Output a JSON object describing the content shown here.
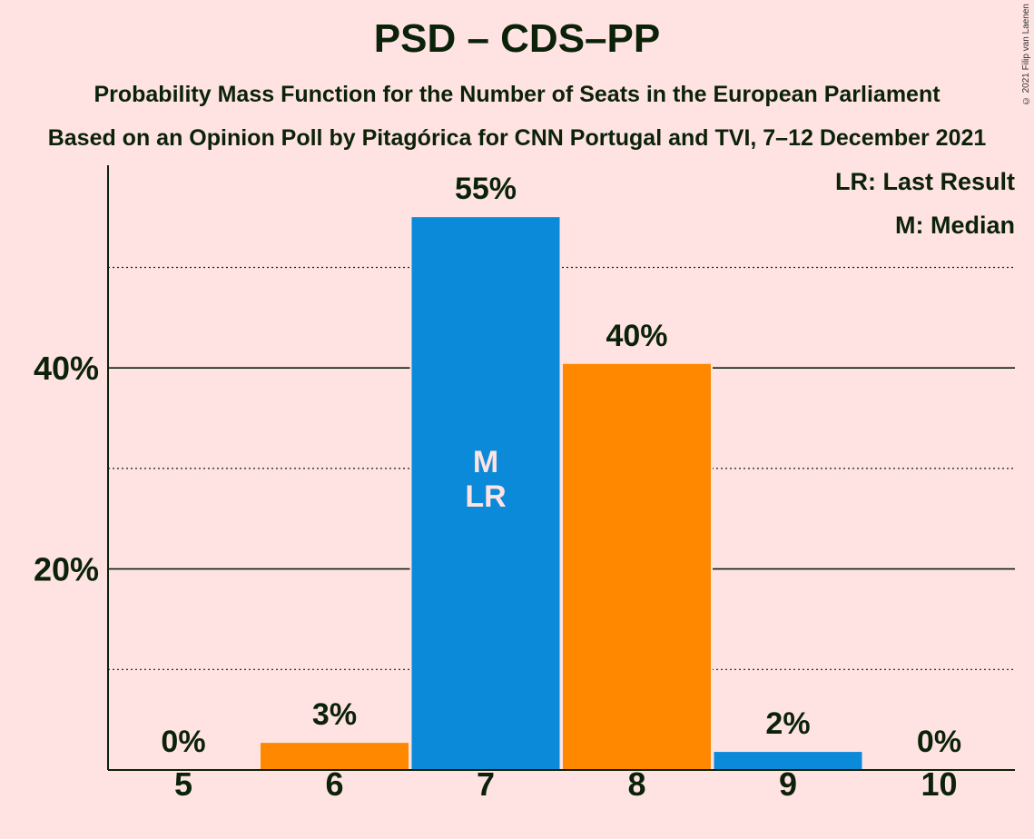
{
  "header": {
    "title": "PSD – CDS–PP",
    "subtitle1": "Probability Mass Function for the Number of Seats in the European Parliament",
    "subtitle2": "Based on an Opinion Poll by Pitagórica for CNN Portugal and TVI, 7–12 December 2021",
    "copyright": "© 2021 Filip van Laenen"
  },
  "legend": {
    "last_result": "LR: Last Result",
    "median": "M: Median"
  },
  "colors": {
    "background": "#FFE3E3",
    "blue": "#0A8AD8",
    "orange": "#FF8800",
    "text": "#0b2209"
  },
  "chart_data": {
    "type": "bar",
    "title": "PSD – CDS–PP",
    "categories": [
      "5",
      "6",
      "7",
      "8",
      "9",
      "10"
    ],
    "values": [
      0,
      2.7,
      55,
      40.4,
      1.8,
      0
    ],
    "labels": [
      "0%",
      "3%",
      "55%",
      "40%",
      "2%",
      "0%"
    ],
    "bar_colors": [
      "#FF8800",
      "#FF8800",
      "#0A8AD8",
      "#FF8800",
      "#0A8AD8",
      "#0A8AD8"
    ],
    "markers": {
      "7": [
        "M",
        "LR"
      ]
    },
    "ylim": [
      0,
      60
    ],
    "yticks": [
      20,
      40
    ],
    "ytick_labels": [
      "20%",
      "40%"
    ],
    "minor_gridlines": [
      10,
      30,
      50
    ],
    "xlabel": "",
    "ylabel": "",
    "legend_position": "top-right",
    "grid": true
  }
}
